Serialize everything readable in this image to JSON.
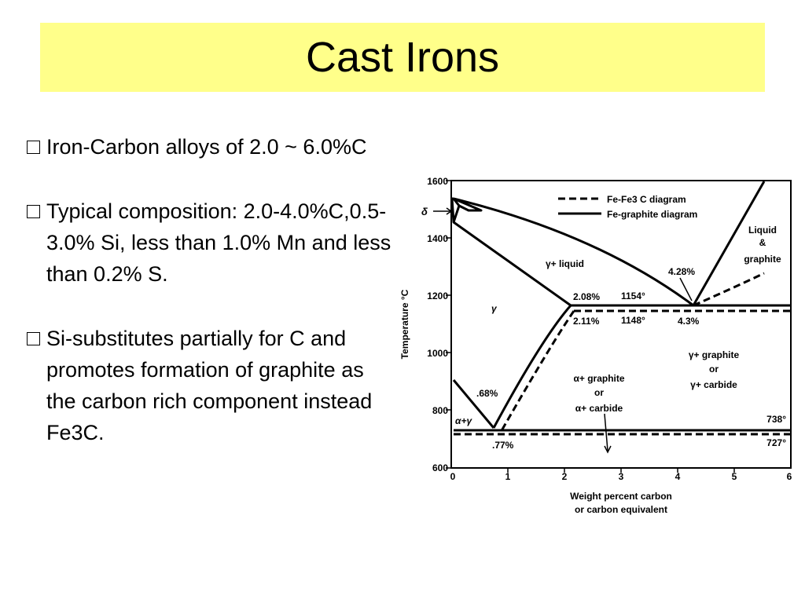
{
  "slide": {
    "title": "Cast Irons",
    "bullets": [
      "Iron-Carbon alloys of 2.0 ~ 6.0%C",
      "Typical composition: 2.0-4.0%C,0.5-3.0% Si, less than 1.0% Mn and less than 0.2% S.",
      "Si-substitutes partially for C and promotes formation of graphite as the carbon rich component instead Fe3C."
    ]
  },
  "diagram": {
    "y_axis_label": "Temperature °C",
    "x_axis_label_line1": "Weight percent carbon",
    "x_axis_label_line2": "or carbon equivalent",
    "y_ticks": [
      "1600",
      "1400",
      "1200",
      "1000",
      "800",
      "600"
    ],
    "x_ticks": [
      "0",
      "1",
      "2",
      "3",
      "4",
      "5",
      "6"
    ],
    "legend": {
      "dashed": "Fe-Fe3 C diagram",
      "solid": "Fe-graphite diagram"
    },
    "labels": {
      "delta": "δ",
      "gamma": "γ",
      "gamma_liquid": "γ+ liquid",
      "liquid_graphite_1": "Liquid",
      "liquid_graphite_2": "&",
      "liquid_graphite_3": "graphite",
      "c_428": "4.28%",
      "c_208": "2.08%",
      "c_211": "2.11%",
      "c_43": "4.3%",
      "t_1154": "1154°",
      "t_1148": "1148°",
      "gamma_graphite_1": "γ+ graphite",
      "gamma_graphite_2": "or",
      "gamma_graphite_3": "γ+ carbide",
      "alpha_graphite_1": "α+ graphite",
      "alpha_graphite_2": "or",
      "alpha_graphite_3": "α+ carbide",
      "c_068": ".68%",
      "c_077": ".77%",
      "alpha_gamma": "α+γ",
      "t_738": "738°",
      "t_727": "727°"
    }
  }
}
